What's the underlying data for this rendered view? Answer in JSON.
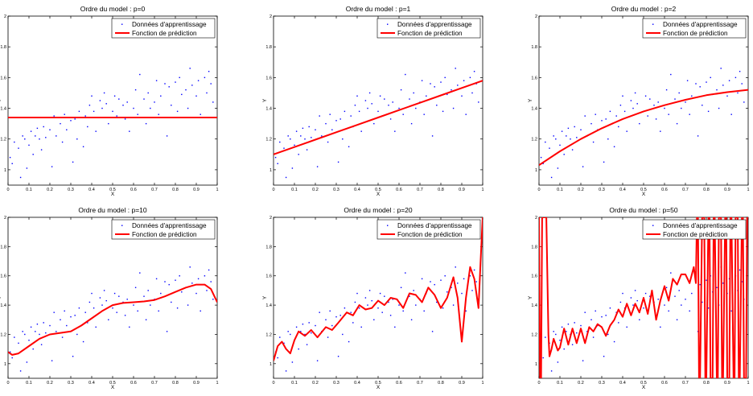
{
  "chart_data": [
    {
      "type": "line",
      "title": "Ordre du model : p=0",
      "xlabel": "X",
      "ylabel": "Y",
      "xlim": [
        0,
        1
      ],
      "ylim": [
        0.9,
        2
      ],
      "xticks": [
        0,
        0.1,
        0.2,
        0.3,
        0.4,
        0.5,
        0.6,
        0.7,
        0.8,
        0.9,
        1
      ],
      "yticks": [
        1,
        1.2,
        1.4,
        1.6,
        1.8,
        2
      ],
      "legend": {
        "position": "top-right",
        "entries": [
          "Données d'apprentissage",
          "Fonction de prédiction"
        ]
      },
      "series": [
        {
          "name": "Données d'apprentissage",
          "kind": "scatter",
          "color": "#0000ff",
          "ref": "training"
        },
        {
          "name": "Fonction de prédiction",
          "kind": "line",
          "color": "#ff0000",
          "x": [
            0,
            0.1,
            0.2,
            0.3,
            0.4,
            0.5,
            0.6,
            0.7,
            0.8,
            0.9,
            1
          ],
          "y": [
            1.34,
            1.34,
            1.34,
            1.34,
            1.34,
            1.34,
            1.34,
            1.34,
            1.34,
            1.34,
            1.34
          ]
        }
      ]
    },
    {
      "type": "line",
      "title": "Ordre du model : p=1",
      "xlabel": "X",
      "ylabel": "Y",
      "xlim": [
        0,
        1
      ],
      "ylim": [
        0.9,
        2
      ],
      "xticks": [
        0,
        0.1,
        0.2,
        0.3,
        0.4,
        0.5,
        0.6,
        0.7,
        0.8,
        0.9,
        1
      ],
      "yticks": [
        1,
        1.2,
        1.4,
        1.6,
        1.8,
        2
      ],
      "legend": {
        "position": "top-right",
        "entries": [
          "Données d'apprentissage",
          "Fonction de prédiction"
        ]
      },
      "series": [
        {
          "name": "Données d'apprentissage",
          "kind": "scatter",
          "color": "#0000ff",
          "ref": "training"
        },
        {
          "name": "Fonction de prédiction",
          "kind": "line",
          "color": "#ff0000",
          "x": [
            0,
            0.1,
            0.2,
            0.3,
            0.4,
            0.5,
            0.6,
            0.7,
            0.8,
            0.9,
            1
          ],
          "y": [
            1.1,
            1.148,
            1.196,
            1.244,
            1.292,
            1.34,
            1.388,
            1.436,
            1.484,
            1.532,
            1.58
          ]
        }
      ]
    },
    {
      "type": "line",
      "title": "Ordre du model : p=2",
      "xlabel": "X",
      "ylabel": "Y",
      "xlim": [
        0,
        1
      ],
      "ylim": [
        0.9,
        2
      ],
      "xticks": [
        0,
        0.1,
        0.2,
        0.3,
        0.4,
        0.5,
        0.6,
        0.7,
        0.8,
        0.9,
        1
      ],
      "yticks": [
        1,
        1.2,
        1.4,
        1.6,
        1.8,
        2
      ],
      "legend": {
        "position": "top-right",
        "entries": [
          "Données d'apprentissage",
          "Fonction de prédiction"
        ]
      },
      "series": [
        {
          "name": "Données d'apprentissage",
          "kind": "scatter",
          "color": "#0000ff",
          "ref": "training"
        },
        {
          "name": "Fonction de prédiction",
          "kind": "line",
          "color": "#ff0000",
          "x": [
            0,
            0.1,
            0.2,
            0.3,
            0.4,
            0.5,
            0.6,
            0.7,
            0.8,
            0.9,
            1
          ],
          "y": [
            1.03,
            1.12,
            1.2,
            1.27,
            1.33,
            1.38,
            1.42,
            1.455,
            1.485,
            1.505,
            1.52
          ]
        }
      ]
    },
    {
      "type": "line",
      "title": "Ordre du model : p=10",
      "xlabel": "X",
      "ylabel": "Y",
      "xlim": [
        0,
        1
      ],
      "ylim": [
        0.9,
        2
      ],
      "xticks": [
        0,
        0.1,
        0.2,
        0.3,
        0.4,
        0.5,
        0.6,
        0.7,
        0.8,
        0.9,
        1
      ],
      "yticks": [
        1,
        1.2,
        1.4,
        1.6,
        1.8,
        2
      ],
      "legend": {
        "position": "top-right",
        "entries": [
          "Données d'apprentissage",
          "Fonction de prédiction"
        ]
      },
      "series": [
        {
          "name": "Données d'apprentissage",
          "kind": "scatter",
          "color": "#0000ff",
          "ref": "training"
        },
        {
          "name": "Fonction de prédiction",
          "kind": "line",
          "color": "#ff0000",
          "x": [
            0,
            0.02,
            0.05,
            0.1,
            0.15,
            0.2,
            0.25,
            0.3,
            0.35,
            0.4,
            0.45,
            0.5,
            0.55,
            0.6,
            0.65,
            0.7,
            0.75,
            0.8,
            0.85,
            0.9,
            0.94,
            0.97,
            1
          ],
          "y": [
            1.08,
            1.06,
            1.07,
            1.12,
            1.17,
            1.2,
            1.21,
            1.22,
            1.26,
            1.31,
            1.36,
            1.4,
            1.415,
            1.42,
            1.425,
            1.435,
            1.46,
            1.49,
            1.52,
            1.54,
            1.54,
            1.51,
            1.42
          ]
        }
      ]
    },
    {
      "type": "line",
      "title": "Ordre du model : p=20",
      "xlabel": "X",
      "ylabel": "Y",
      "xlim": [
        0,
        1
      ],
      "ylim": [
        0.9,
        2
      ],
      "xticks": [
        0,
        0.1,
        0.2,
        0.3,
        0.4,
        0.5,
        0.6,
        0.7,
        0.8,
        0.9,
        1
      ],
      "yticks": [
        1,
        1.2,
        1.4,
        1.6,
        1.8,
        2
      ],
      "legend": {
        "position": "top-right",
        "entries": [
          "Données d'apprentissage",
          "Fonction de prédiction"
        ]
      },
      "series": [
        {
          "name": "Données d'apprentissage",
          "kind": "scatter",
          "color": "#0000ff",
          "ref": "training"
        },
        {
          "name": "Fonction de prédiction",
          "kind": "line",
          "color": "#ff0000",
          "x": [
            0,
            0.02,
            0.04,
            0.06,
            0.08,
            0.1,
            0.12,
            0.15,
            0.18,
            0.21,
            0.25,
            0.28,
            0.31,
            0.35,
            0.38,
            0.41,
            0.44,
            0.47,
            0.5,
            0.53,
            0.56,
            0.59,
            0.62,
            0.65,
            0.68,
            0.71,
            0.74,
            0.77,
            0.8,
            0.83,
            0.86,
            0.88,
            0.9,
            0.92,
            0.94,
            0.96,
            0.98,
            0.99,
            1
          ],
          "y": [
            1.02,
            1.12,
            1.15,
            1.1,
            1.07,
            1.16,
            1.22,
            1.19,
            1.23,
            1.18,
            1.25,
            1.23,
            1.28,
            1.35,
            1.33,
            1.4,
            1.37,
            1.38,
            1.43,
            1.4,
            1.45,
            1.44,
            1.38,
            1.48,
            1.47,
            1.42,
            1.52,
            1.47,
            1.38,
            1.45,
            1.59,
            1.45,
            1.15,
            1.45,
            1.66,
            1.58,
            1.38,
            1.7,
            2.0
          ]
        }
      ]
    },
    {
      "type": "line",
      "title": "Ordre du model : p=50",
      "xlabel": "X",
      "ylabel": "Y",
      "xlim": [
        0,
        1
      ],
      "ylim": [
        0.9,
        2
      ],
      "xticks": [
        0,
        0.1,
        0.2,
        0.3,
        0.4,
        0.5,
        0.6,
        0.7,
        0.8,
        0.9,
        1
      ],
      "yticks": [
        1,
        1.2,
        1.4,
        1.6,
        1.8,
        2
      ],
      "legend": {
        "position": "top-right",
        "entries": [
          "Données d'apprentissage",
          "Fonction de prédiction"
        ]
      },
      "series": [
        {
          "name": "Données d'apprentissage",
          "kind": "scatter",
          "color": "#0000ff",
          "ref": "training"
        },
        {
          "name": "Fonction de prédiction",
          "kind": "line",
          "color": "#ff0000",
          "x": [
            0,
            0.005,
            0.01,
            0.015,
            0.02,
            0.025,
            0.03,
            0.035,
            0.04,
            0.045,
            0.05,
            0.06,
            0.07,
            0.08,
            0.09,
            0.1,
            0.12,
            0.14,
            0.16,
            0.18,
            0.2,
            0.22,
            0.24,
            0.26,
            0.28,
            0.3,
            0.32,
            0.34,
            0.36,
            0.38,
            0.4,
            0.42,
            0.44,
            0.46,
            0.48,
            0.5,
            0.52,
            0.54,
            0.56,
            0.58,
            0.6,
            0.62,
            0.64,
            0.66,
            0.68,
            0.7,
            0.72,
            0.74,
            0.75,
            0.755,
            0.76,
            0.765,
            0.77,
            0.78,
            0.785,
            0.79,
            0.795,
            0.8,
            0.81,
            0.815,
            0.82,
            0.83,
            0.835,
            0.84,
            0.85,
            0.855,
            0.86,
            0.87,
            0.875,
            0.88,
            0.89,
            0.895,
            0.9,
            0.91,
            0.915,
            0.92,
            0.93,
            0.935,
            0.94,
            0.95,
            0.955,
            0.96,
            0.97,
            0.975,
            0.98,
            0.99,
            0.995,
            1
          ],
          "y": [
            2.0,
            0.9,
            0.9,
            2.0,
            2.0,
            2.0,
            2.0,
            2.0,
            1.6,
            1.2,
            1.05,
            1.1,
            1.17,
            1.13,
            1.09,
            1.11,
            1.24,
            1.13,
            1.24,
            1.14,
            1.24,
            1.14,
            1.25,
            1.22,
            1.27,
            1.25,
            1.19,
            1.26,
            1.3,
            1.37,
            1.32,
            1.41,
            1.33,
            1.41,
            1.35,
            1.45,
            1.34,
            1.5,
            1.3,
            1.43,
            1.53,
            1.43,
            1.58,
            1.54,
            1.61,
            1.61,
            1.55,
            1.66,
            1.55,
            2.0,
            2.0,
            0.9,
            0.9,
            2.0,
            2.0,
            2.0,
            0.9,
            0.9,
            2.0,
            2.0,
            0.9,
            0.9,
            2.0,
            2.0,
            0.9,
            0.9,
            2.0,
            2.0,
            0.9,
            0.9,
            2.0,
            2.0,
            0.9,
            0.9,
            2.0,
            2.0,
            0.9,
            0.9,
            2.0,
            2.0,
            0.9,
            0.9,
            2.0,
            2.0,
            0.9,
            0.9,
            2.0,
            2.0
          ]
        }
      ]
    }
  ],
  "training_data": {
    "x": [
      0.01,
      0.02,
      0.03,
      0.05,
      0.06,
      0.07,
      0.08,
      0.09,
      0.1,
      0.11,
      0.12,
      0.13,
      0.14,
      0.15,
      0.16,
      0.17,
      0.18,
      0.2,
      0.21,
      0.22,
      0.23,
      0.25,
      0.26,
      0.27,
      0.28,
      0.3,
      0.31,
      0.32,
      0.33,
      0.34,
      0.36,
      0.37,
      0.38,
      0.39,
      0.4,
      0.41,
      0.42,
      0.44,
      0.45,
      0.46,
      0.47,
      0.48,
      0.5,
      0.51,
      0.52,
      0.53,
      0.55,
      0.56,
      0.57,
      0.58,
      0.6,
      0.61,
      0.62,
      0.63,
      0.65,
      0.66,
      0.67,
      0.68,
      0.7,
      0.71,
      0.72,
      0.73,
      0.75,
      0.76,
      0.77,
      0.78,
      0.8,
      0.81,
      0.82,
      0.83,
      0.85,
      0.86,
      0.87,
      0.88,
      0.9,
      0.91,
      0.92,
      0.94,
      0.95,
      0.96,
      0.97,
      0.98
    ],
    "y": [
      1.08,
      1.04,
      1.18,
      1.14,
      0.95,
      1.22,
      1.2,
      1.01,
      1.16,
      1.25,
      1.1,
      1.22,
      1.27,
      1.2,
      1.13,
      1.28,
      1.21,
      1.26,
      1.02,
      1.35,
      1.22,
      1.3,
      1.18,
      1.36,
      1.26,
      1.32,
      1.05,
      1.33,
      1.2,
      1.38,
      1.15,
      1.35,
      1.28,
      1.42,
      1.48,
      1.38,
      1.25,
      1.45,
      1.4,
      1.5,
      1.43,
      1.3,
      1.38,
      1.48,
      1.35,
      1.46,
      1.42,
      1.33,
      1.44,
      1.25,
      1.4,
      1.52,
      1.36,
      1.62,
      1.46,
      1.3,
      1.5,
      1.4,
      1.44,
      1.58,
      1.36,
      1.48,
      1.56,
      1.22,
      1.54,
      1.42,
      1.57,
      1.38,
      1.6,
      1.49,
      1.52,
      1.4,
      1.66,
      1.55,
      1.48,
      1.58,
      1.36,
      1.6,
      1.5,
      1.64,
      1.56,
      1.44
    ]
  }
}
